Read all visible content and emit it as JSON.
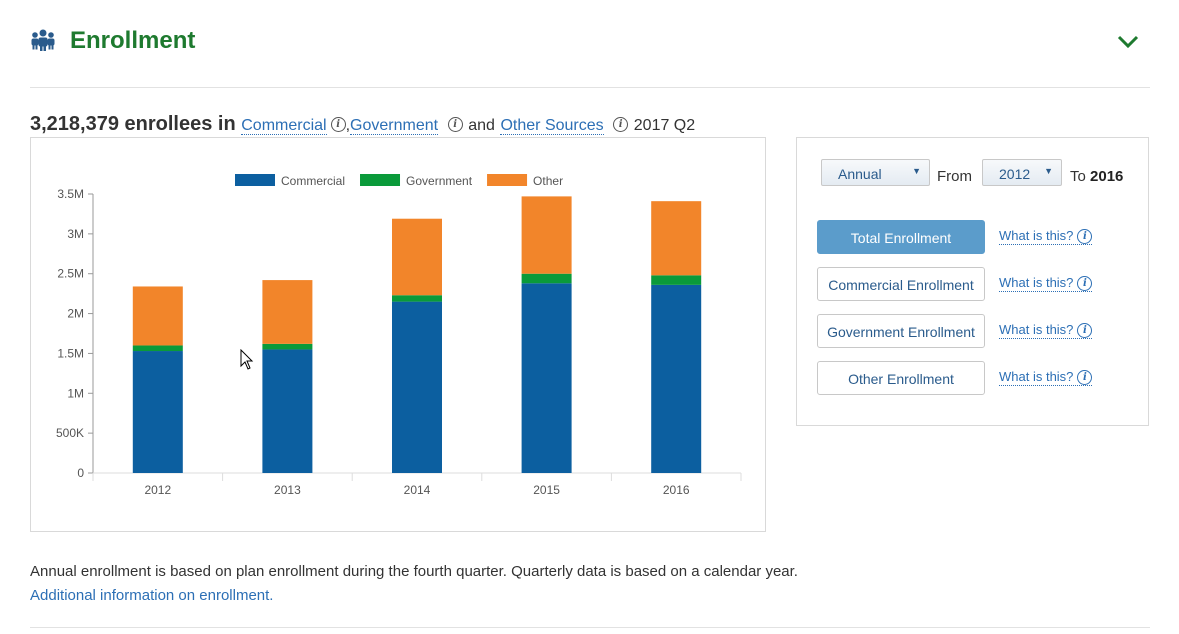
{
  "header": {
    "title": "Enrollment",
    "icon": "people-icon",
    "toggle_icon": "chevron-down-icon",
    "accent": "#1e7a2f"
  },
  "summary": {
    "count": "3,218,379 enrollees in",
    "link_commercial": "Commercial",
    "sep": ",",
    "link_government": "Government",
    "and": "and",
    "link_other": "Other Sources",
    "period": "2017 Q2"
  },
  "controls": {
    "period_select": "Annual",
    "from_label": "From",
    "from_select": "2012",
    "to_label": "To",
    "to_value": "2016",
    "buttons": [
      {
        "label": "Total Enrollment",
        "active": true,
        "help": "What is this?"
      },
      {
        "label": "Commercial Enrollment",
        "active": false,
        "help": "What is this?"
      },
      {
        "label": "Government Enrollment",
        "active": false,
        "help": "What is this?"
      },
      {
        "label": "Other Enrollment",
        "active": false,
        "help": "What is this?"
      }
    ]
  },
  "chart_data": {
    "type": "bar",
    "stacked": true,
    "categories": [
      "2012",
      "2013",
      "2014",
      "2015",
      "2016"
    ],
    "series": [
      {
        "name": "Commercial",
        "color": "#0c5fa0",
        "values": [
          1530000,
          1550000,
          2150000,
          2380000,
          2360000
        ]
      },
      {
        "name": "Government",
        "color": "#0a9a3a",
        "values": [
          70000,
          70000,
          80000,
          120000,
          120000
        ]
      },
      {
        "name": "Other",
        "color": "#f2852a",
        "values": [
          740000,
          800000,
          960000,
          970000,
          930000
        ]
      }
    ],
    "ylim": [
      0,
      3500000
    ],
    "yticks": [
      0,
      500000,
      1000000,
      1500000,
      2000000,
      2500000,
      3000000,
      3500000
    ],
    "ytick_labels": [
      "0",
      "500K",
      "1M",
      "1.5M",
      "2M",
      "2.5M",
      "3M",
      "3.5M"
    ],
    "legend_position": "top-center",
    "grid": false
  },
  "footer": {
    "note": "Annual enrollment is based on plan enrollment during the fourth quarter. Quarterly data is based on a calendar year.",
    "link": "Additional information on enrollment."
  }
}
